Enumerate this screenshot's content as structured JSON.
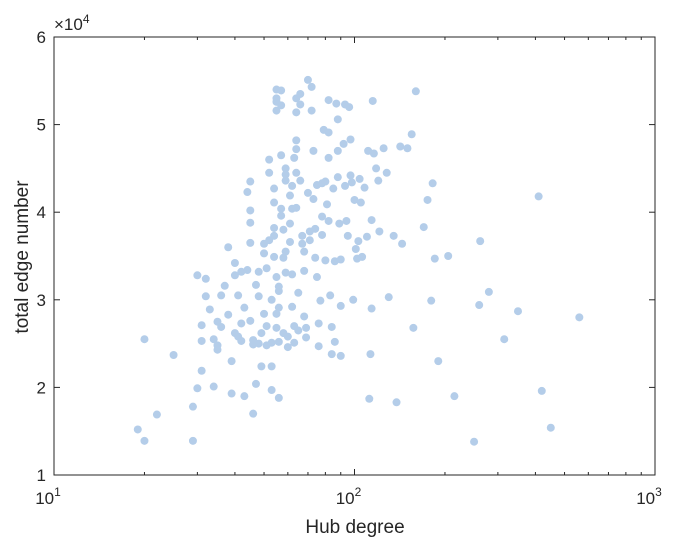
{
  "chart_data": {
    "type": "scatter",
    "title": "",
    "xlabel": "Hub degree",
    "ylabel": "total edge number",
    "xscale": "log",
    "xlim": [
      10,
      1000
    ],
    "ylim": [
      10000,
      60000
    ],
    "grid": false,
    "y_multiplier_label": "×10",
    "y_multiplier_exponent": "4",
    "x_ticks": [
      {
        "value": 10,
        "base": "10",
        "exp": "1"
      },
      {
        "value": 100,
        "base": "10",
        "exp": "2"
      },
      {
        "value": 1000,
        "base": "10",
        "exp": "3"
      }
    ],
    "y_ticks": [
      {
        "value": 10000,
        "label": "1"
      },
      {
        "value": 20000,
        "label": "2"
      },
      {
        "value": 30000,
        "label": "3"
      },
      {
        "value": 40000,
        "label": "4"
      },
      {
        "value": 50000,
        "label": "5"
      },
      {
        "value": 60000,
        "label": "6"
      }
    ],
    "marker_color": "#b4cde9",
    "points": [
      [
        19,
        15200
      ],
      [
        20,
        13900
      ],
      [
        20,
        25500
      ],
      [
        22,
        16900
      ],
      [
        25,
        23700
      ],
      [
        29,
        13900
      ],
      [
        29,
        17800
      ],
      [
        30,
        19900
      ],
      [
        30,
        32800
      ],
      [
        31,
        21900
      ],
      [
        31,
        27100
      ],
      [
        31,
        25300
      ],
      [
        32,
        32400
      ],
      [
        32,
        30400
      ],
      [
        33,
        28900
      ],
      [
        34,
        25500
      ],
      [
        34,
        20100
      ],
      [
        35,
        24800
      ],
      [
        35,
        27500
      ],
      [
        35,
        24300
      ],
      [
        36,
        26900
      ],
      [
        36,
        30500
      ],
      [
        37,
        31600
      ],
      [
        38,
        36000
      ],
      [
        38,
        28300
      ],
      [
        39,
        23000
      ],
      [
        39,
        19300
      ],
      [
        40,
        32800
      ],
      [
        40,
        26200
      ],
      [
        40,
        34200
      ],
      [
        41,
        25800
      ],
      [
        41,
        30500
      ],
      [
        42,
        33200
      ],
      [
        42,
        27300
      ],
      [
        42,
        25300
      ],
      [
        43,
        29100
      ],
      [
        43,
        19000
      ],
      [
        44,
        42300
      ],
      [
        44,
        33400
      ],
      [
        45,
        43500
      ],
      [
        45,
        40200
      ],
      [
        45,
        38800
      ],
      [
        45,
        36500
      ],
      [
        45,
        27600
      ],
      [
        46,
        24900
      ],
      [
        46,
        25400
      ],
      [
        46,
        17000
      ],
      [
        47,
        20400
      ],
      [
        47,
        31700
      ],
      [
        48,
        33200
      ],
      [
        48,
        30400
      ],
      [
        48,
        25000
      ],
      [
        49,
        26200
      ],
      [
        49,
        22400
      ],
      [
        50,
        36400
      ],
      [
        50,
        28400
      ],
      [
        50,
        35300
      ],
      [
        51,
        27000
      ],
      [
        51,
        24800
      ],
      [
        51,
        33600
      ],
      [
        52,
        36800
      ],
      [
        52,
        44500
      ],
      [
        52,
        46000
      ],
      [
        53,
        30000
      ],
      [
        53,
        25100
      ],
      [
        53,
        22400
      ],
      [
        53,
        19700
      ],
      [
        54,
        37300
      ],
      [
        54,
        41100
      ],
      [
        54,
        42700
      ],
      [
        54,
        38200
      ],
      [
        54,
        34900
      ],
      [
        55,
        32600
      ],
      [
        55,
        28400
      ],
      [
        55,
        26800
      ],
      [
        55,
        54000
      ],
      [
        55,
        53000
      ],
      [
        55,
        52600
      ],
      [
        55,
        51600
      ],
      [
        56,
        31500
      ],
      [
        56,
        31000
      ],
      [
        56,
        29100
      ],
      [
        56,
        25200
      ],
      [
        56,
        18800
      ],
      [
        57,
        53900
      ],
      [
        57,
        52200
      ],
      [
        57,
        46500
      ],
      [
        57,
        40400
      ],
      [
        57,
        39600
      ],
      [
        58,
        38000
      ],
      [
        58,
        34800
      ],
      [
        58,
        26200
      ],
      [
        59,
        43600
      ],
      [
        59,
        45000
      ],
      [
        59,
        44300
      ],
      [
        59,
        35500
      ],
      [
        59,
        33100
      ],
      [
        60,
        24600
      ],
      [
        60,
        25800
      ],
      [
        61,
        36600
      ],
      [
        61,
        38700
      ],
      [
        61,
        41900
      ],
      [
        62,
        40400
      ],
      [
        62,
        43000
      ],
      [
        62,
        32900
      ],
      [
        62,
        29200
      ],
      [
        63,
        27000
      ],
      [
        63,
        25100
      ],
      [
        63,
        46200
      ],
      [
        64,
        53000
      ],
      [
        64,
        51400
      ],
      [
        64,
        48200
      ],
      [
        64,
        47200
      ],
      [
        64,
        44500
      ],
      [
        64,
        40500
      ],
      [
        65,
        30800
      ],
      [
        65,
        26500
      ],
      [
        66,
        53500
      ],
      [
        66,
        52300
      ],
      [
        66,
        43600
      ],
      [
        67,
        37300
      ],
      [
        67,
        36400
      ],
      [
        68,
        35500
      ],
      [
        68,
        33300
      ],
      [
        68,
        28100
      ],
      [
        69,
        26800
      ],
      [
        69,
        25700
      ],
      [
        70,
        55100
      ],
      [
        70,
        42200
      ],
      [
        71,
        37800
      ],
      [
        71,
        36800
      ],
      [
        72,
        54300
      ],
      [
        72,
        51600
      ],
      [
        73,
        47000
      ],
      [
        73,
        41500
      ],
      [
        74,
        38100
      ],
      [
        74,
        34800
      ],
      [
        75,
        43100
      ],
      [
        75,
        32600
      ],
      [
        76,
        27300
      ],
      [
        76,
        24700
      ],
      [
        77,
        29900
      ],
      [
        78,
        43300
      ],
      [
        78,
        39500
      ],
      [
        78,
        37400
      ],
      [
        79,
        49400
      ],
      [
        80,
        43500
      ],
      [
        80,
        34500
      ],
      [
        81,
        40900
      ],
      [
        82,
        52800
      ],
      [
        82,
        49100
      ],
      [
        82,
        46200
      ],
      [
        82,
        39000
      ],
      [
        83,
        30500
      ],
      [
        84,
        26900
      ],
      [
        84,
        23800
      ],
      [
        85,
        42700
      ],
      [
        86,
        34400
      ],
      [
        86,
        25200
      ],
      [
        87,
        52400
      ],
      [
        88,
        50600
      ],
      [
        88,
        47000
      ],
      [
        88,
        44000
      ],
      [
        89,
        38700
      ],
      [
        90,
        34600
      ],
      [
        90,
        29300
      ],
      [
        90,
        23600
      ],
      [
        92,
        47800
      ],
      [
        93,
        52300
      ],
      [
        93,
        43000
      ],
      [
        94,
        39000
      ],
      [
        95,
        37300
      ],
      [
        96,
        52000
      ],
      [
        97,
        48300
      ],
      [
        97,
        44200
      ],
      [
        98,
        43400
      ],
      [
        99,
        30000
      ],
      [
        100,
        41400
      ],
      [
        101,
        35800
      ],
      [
        102,
        34700
      ],
      [
        103,
        36700
      ],
      [
        104,
        43800
      ],
      [
        105,
        41100
      ],
      [
        106,
        34900
      ],
      [
        108,
        42800
      ],
      [
        110,
        37200
      ],
      [
        111,
        47000
      ],
      [
        112,
        18700
      ],
      [
        113,
        23800
      ],
      [
        114,
        39100
      ],
      [
        114,
        29000
      ],
      [
        115,
        52700
      ],
      [
        116,
        46700
      ],
      [
        118,
        45000
      ],
      [
        120,
        43600
      ],
      [
        121,
        37800
      ],
      [
        125,
        47300
      ],
      [
        128,
        44500
      ],
      [
        130,
        30300
      ],
      [
        135,
        37300
      ],
      [
        138,
        18300
      ],
      [
        142,
        47500
      ],
      [
        144,
        36400
      ],
      [
        150,
        47300
      ],
      [
        155,
        48900
      ],
      [
        157,
        26800
      ],
      [
        160,
        53800
      ],
      [
        170,
        38300
      ],
      [
        175,
        41400
      ],
      [
        180,
        29900
      ],
      [
        182,
        43300
      ],
      [
        185,
        34700
      ],
      [
        190,
        23000
      ],
      [
        205,
        35000
      ],
      [
        215,
        19000
      ],
      [
        250,
        13800
      ],
      [
        260,
        29400
      ],
      [
        262,
        36700
      ],
      [
        280,
        30900
      ],
      [
        315,
        25500
      ],
      [
        350,
        28700
      ],
      [
        410,
        41800
      ],
      [
        420,
        19600
      ],
      [
        450,
        15400
      ],
      [
        560,
        28000
      ]
    ]
  }
}
